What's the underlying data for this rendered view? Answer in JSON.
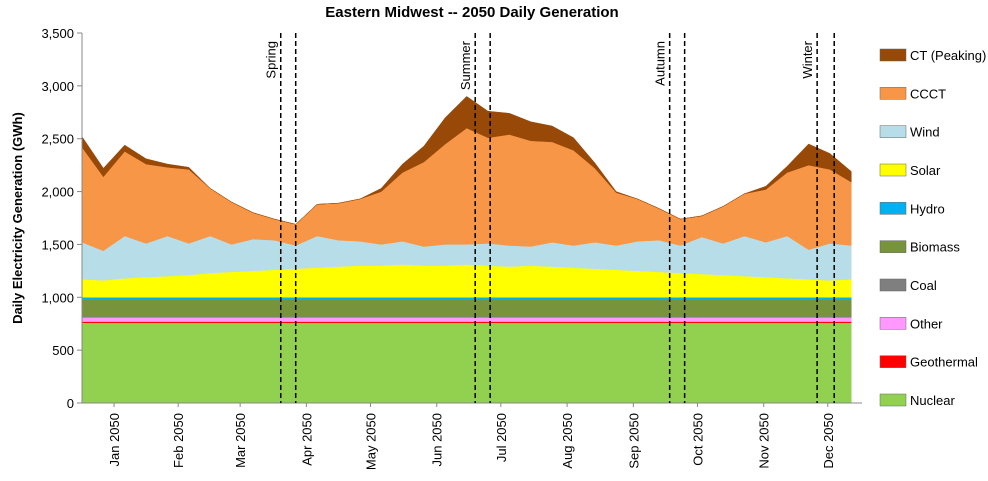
{
  "chart_data": {
    "type": "stacked-area",
    "title": "Eastern Midwest -- 2050 Daily Generation",
    "y_label": "Daily Electricity Generation (GWh)",
    "x": [
      0,
      10,
      20,
      30,
      40,
      50,
      60,
      70,
      80,
      90,
      100,
      110,
      120,
      130,
      140,
      150,
      160,
      170,
      180,
      190,
      200,
      210,
      220,
      230,
      240,
      250,
      260,
      270,
      280,
      290,
      300,
      310,
      320,
      330,
      340,
      350,
      360
    ],
    "xlim": [
      0,
      365
    ],
    "xticks": [
      {
        "value": 15,
        "label": "Jan 2050"
      },
      {
        "value": 45,
        "label": "Feb 2050"
      },
      {
        "value": 74,
        "label": "Mar 2050"
      },
      {
        "value": 105,
        "label": "Apr 2050"
      },
      {
        "value": 135,
        "label": "May 2050"
      },
      {
        "value": 166,
        "label": "Jun 2050"
      },
      {
        "value": 196,
        "label": "Jul 2050"
      },
      {
        "value": 227,
        "label": "Aug 2050"
      },
      {
        "value": 258,
        "label": "Sep 2050"
      },
      {
        "value": 288,
        "label": "Oct 2050"
      },
      {
        "value": 319,
        "label": "Nov 2050"
      },
      {
        "value": 349,
        "label": "Dec 2050"
      }
    ],
    "ylim": [
      0,
      3500
    ],
    "yticks": [
      0,
      500,
      {
        "value": 1000,
        "label": "1,000"
      },
      {
        "value": 1500,
        "label": "1,500"
      },
      {
        "value": 2000,
        "label": "2,000"
      },
      {
        "value": 2500,
        "label": "2,500"
      },
      {
        "value": 3000,
        "label": "3,000"
      },
      {
        "value": 3500,
        "label": "3,500"
      }
    ],
    "grid": false,
    "legend": "right",
    "annotations": [
      {
        "text": "Spring",
        "x": [
          93,
          100
        ]
      },
      {
        "text": "Summer",
        "x": [
          184,
          191
        ]
      },
      {
        "text": "Autumn",
        "x": [
          275,
          282
        ]
      },
      {
        "text": "Winter",
        "x": [
          344,
          352
        ]
      }
    ],
    "series": [
      {
        "name": "Nuclear",
        "color": "#92d050",
        "values": [
          760,
          760,
          760,
          760,
          760,
          760,
          760,
          760,
          760,
          760,
          760,
          760,
          760,
          760,
          760,
          760,
          760,
          760,
          760,
          760,
          760,
          760,
          760,
          760,
          760,
          760,
          760,
          760,
          760,
          760,
          760,
          760,
          760,
          760,
          760,
          760,
          760
        ]
      },
      {
        "name": "Geothermal",
        "color": "#ff0000",
        "values": [
          10,
          10,
          10,
          10,
          10,
          10,
          10,
          10,
          10,
          10,
          10,
          10,
          10,
          10,
          10,
          10,
          10,
          10,
          10,
          10,
          10,
          10,
          10,
          10,
          10,
          10,
          10,
          10,
          10,
          10,
          10,
          10,
          10,
          10,
          10,
          10,
          10
        ]
      },
      {
        "name": "Other",
        "color": "#ff99ff",
        "values": [
          40,
          40,
          40,
          40,
          40,
          40,
          40,
          40,
          40,
          40,
          40,
          40,
          40,
          40,
          40,
          40,
          40,
          40,
          40,
          40,
          40,
          40,
          40,
          40,
          40,
          40,
          40,
          40,
          40,
          40,
          40,
          40,
          40,
          40,
          40,
          40,
          40
        ]
      },
      {
        "name": "Coal",
        "color": "#7f7f7f",
        "values": [
          10,
          10,
          10,
          10,
          10,
          10,
          10,
          10,
          10,
          10,
          10,
          10,
          10,
          10,
          10,
          10,
          10,
          10,
          10,
          10,
          10,
          10,
          10,
          10,
          10,
          10,
          10,
          10,
          10,
          10,
          10,
          10,
          10,
          10,
          10,
          10,
          10
        ]
      },
      {
        "name": "Biomass",
        "color": "#77933c",
        "values": [
          160,
          160,
          160,
          160,
          160,
          160,
          160,
          160,
          160,
          160,
          160,
          160,
          160,
          160,
          160,
          160,
          160,
          160,
          160,
          160,
          160,
          160,
          160,
          160,
          160,
          160,
          160,
          160,
          160,
          160,
          160,
          160,
          160,
          160,
          160,
          160,
          160
        ]
      },
      {
        "name": "Hydro",
        "color": "#00b0f0",
        "values": [
          20,
          20,
          20,
          20,
          20,
          20,
          20,
          20,
          20,
          20,
          20,
          20,
          20,
          20,
          20,
          20,
          20,
          20,
          20,
          20,
          20,
          20,
          20,
          20,
          20,
          20,
          20,
          20,
          20,
          20,
          20,
          20,
          20,
          20,
          20,
          20,
          20
        ]
      },
      {
        "name": "Solar",
        "color": "#ffff00",
        "values": [
          170,
          160,
          180,
          190,
          200,
          210,
          230,
          240,
          250,
          260,
          270,
          280,
          290,
          300,
          300,
          310,
          300,
          300,
          310,
          300,
          290,
          300,
          290,
          280,
          270,
          260,
          250,
          240,
          230,
          220,
          210,
          200,
          190,
          180,
          170,
          160,
          170
        ]
      },
      {
        "name": "Wind",
        "color": "#b7dee8",
        "values": [
          350,
          280,
          400,
          320,
          380,
          300,
          350,
          260,
          300,
          280,
          220,
          300,
          250,
          230,
          200,
          220,
          180,
          200,
          190,
          210,
          200,
          180,
          230,
          210,
          250,
          230,
          280,
          300,
          260,
          350,
          300,
          380,
          330,
          400,
          280,
          350,
          320
        ]
      },
      {
        "name": "CCCT",
        "color": "#f79646",
        "values": [
          900,
          700,
          800,
          750,
          650,
          700,
          450,
          400,
          250,
          200,
          200,
          300,
          350,
          400,
          500,
          650,
          800,
          950,
          1100,
          1000,
          1050,
          1000,
          950,
          900,
          700,
          500,
          400,
          300,
          250,
          200,
          350,
          400,
          500,
          600,
          800,
          700,
          600
        ]
      },
      {
        "name": "CT (Peaking)",
        "color": "#984807",
        "values": [
          100,
          80,
          60,
          50,
          30,
          20,
          0,
          0,
          0,
          0,
          0,
          0,
          0,
          0,
          30,
          80,
          150,
          250,
          300,
          250,
          200,
          180,
          150,
          120,
          50,
          10,
          0,
          0,
          0,
          0,
          0,
          0,
          30,
          60,
          200,
          150,
          100
        ]
      }
    ]
  }
}
